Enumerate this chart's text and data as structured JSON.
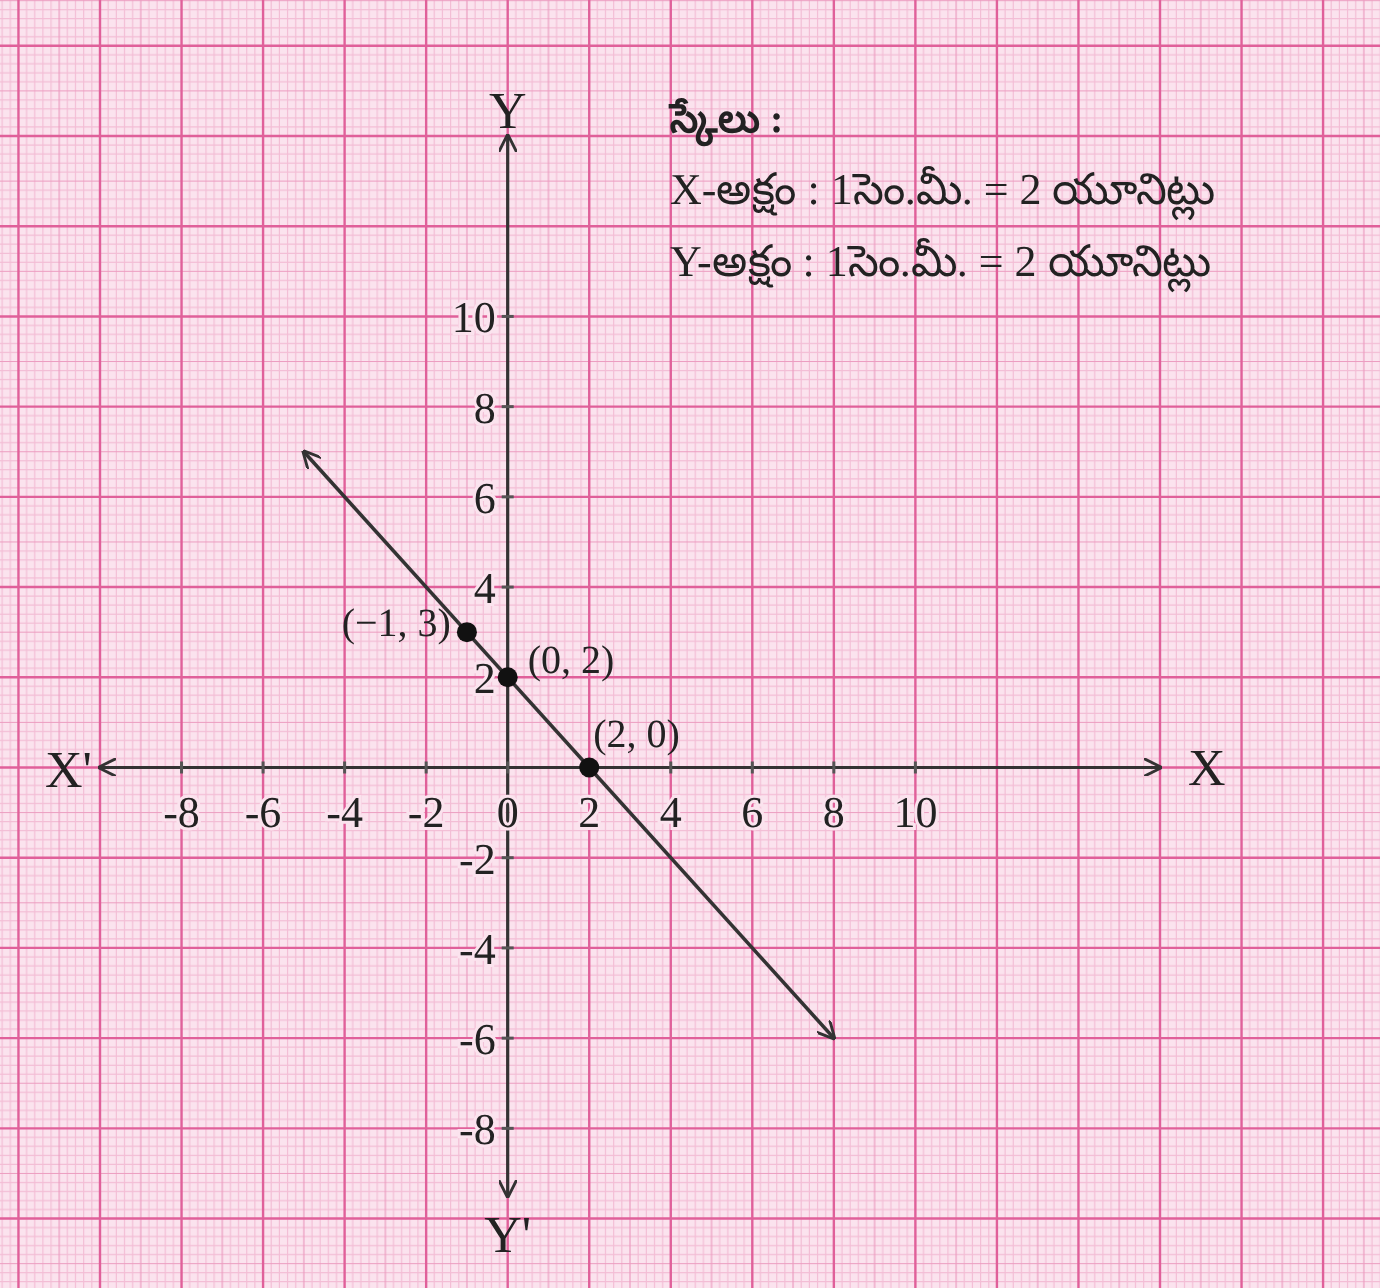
{
  "chart_data": {
    "type": "line",
    "xlabel": "X",
    "ylabel": "Y",
    "xlim": [
      -10,
      16
    ],
    "ylim": [
      -9.5,
      14
    ],
    "xticks": [
      -8,
      -6,
      -4,
      -2,
      0,
      2,
      4,
      6,
      8,
      10
    ],
    "yticks": [
      -8,
      -6,
      -4,
      -2,
      2,
      4,
      6,
      8,
      10
    ],
    "grid": true,
    "series": [
      {
        "type": "line",
        "color": "#333333",
        "x": [
          -5,
          8
        ],
        "values": [
          7,
          -6
        ]
      },
      {
        "type": "scatter",
        "color": "#111111",
        "x": [
          -1,
          0,
          2
        ],
        "values": [
          3,
          2,
          0
        ]
      }
    ],
    "annotations": [
      {
        "text": "(−1, 3)",
        "x": -1,
        "y": 3
      },
      {
        "text": "(0, 2)",
        "x": 0,
        "y": 2
      },
      {
        "text": "(2, 0)",
        "x": 2,
        "y": 0
      },
      "X'",
      "Y'",
      "స్కేలు :",
      "X-అక్షం : 1సెం.మీ. = 2 యూనిట్లు",
      "Y-అక్షం : 1సెం.మీ. = 2 యూనిట్లు"
    ]
  }
}
